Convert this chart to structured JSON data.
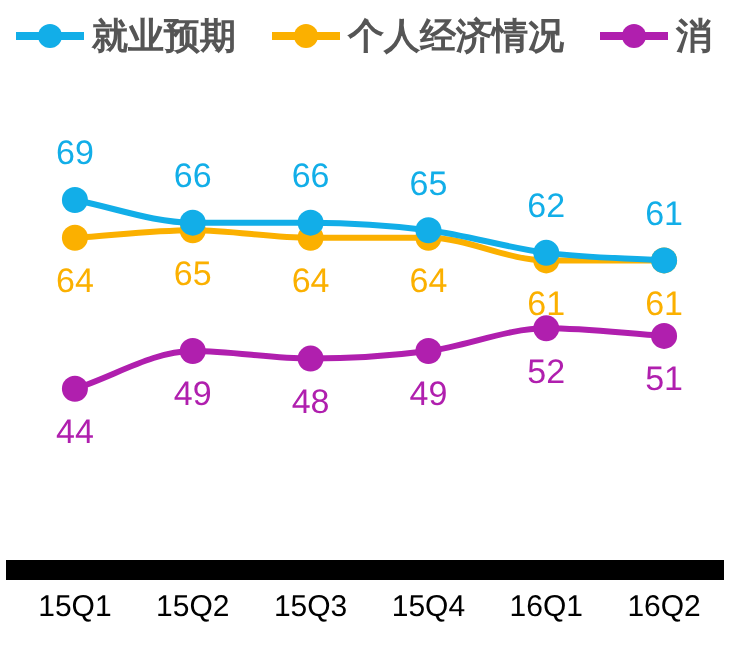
{
  "chart_data": {
    "type": "line",
    "categories": [
      "15Q1",
      "15Q2",
      "15Q3",
      "15Q4",
      "16Q1",
      "16Q2"
    ],
    "series": [
      {
        "name": "就业预期",
        "color": "#12aee8",
        "values": [
          69,
          66,
          66,
          65,
          62,
          61
        ]
      },
      {
        "name": "个人经济情况",
        "color": "#fbb000",
        "values": [
          64,
          65,
          64,
          64,
          61,
          61
        ]
      },
      {
        "name": "消",
        "color": "#b01fae",
        "values": [
          44,
          49,
          48,
          49,
          52,
          51
        ]
      }
    ],
    "tick_labels": "x",
    "grid": false,
    "legend": "top left",
    "marker": "circle",
    "line_style": "solid",
    "data_labels": true
  }
}
